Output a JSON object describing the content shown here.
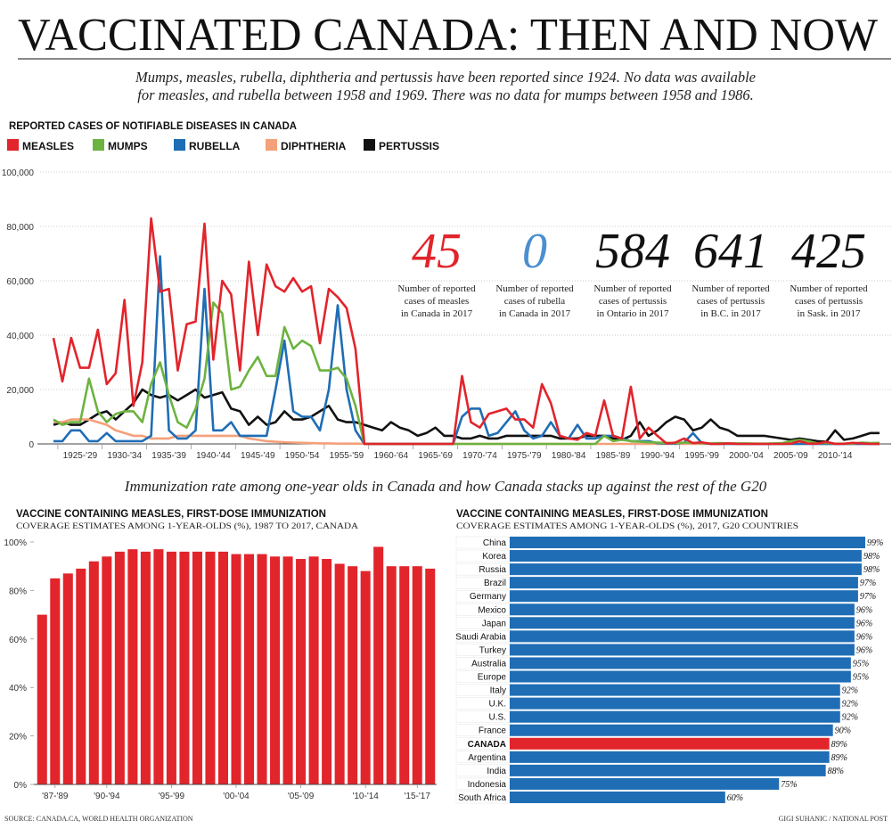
{
  "header": {
    "title": "VACCINATED CANADA: THEN AND NOW",
    "subtitle_lines": [
      "Mumps, measles, rubella, diphtheria and pertussis have been reported since 1924. No data was available",
      "for measles, and rubella between 1958 and 1969. There was no data for mumps between 1958 and 1986."
    ]
  },
  "section_heading": "Immunization rate among one-year olds in Canada and how Canada stacks up against the rest of the G20",
  "chart_data": [
    {
      "type": "line",
      "title": "REPORTED CASES OF NOTIFIABLE DISEASES IN CANADA",
      "x": [
        1924,
        1925,
        1926,
        1927,
        1928,
        1929,
        1930,
        1931,
        1932,
        1933,
        1934,
        1935,
        1936,
        1937,
        1938,
        1939,
        1940,
        1941,
        1942,
        1943,
        1944,
        1945,
        1946,
        1947,
        1948,
        1949,
        1950,
        1951,
        1952,
        1953,
        1954,
        1955,
        1956,
        1957,
        1958,
        1959,
        1960,
        1961,
        1962,
        1963,
        1964,
        1965,
        1966,
        1967,
        1968,
        1969,
        1970,
        1971,
        1972,
        1973,
        1974,
        1975,
        1976,
        1977,
        1978,
        1979,
        1980,
        1981,
        1982,
        1983,
        1984,
        1985,
        1986,
        1987,
        1988,
        1989,
        1990,
        1991,
        1992,
        1993,
        1994,
        1995,
        1996,
        1997,
        1998,
        1999,
        2000,
        2001,
        2002,
        2003,
        2004,
        2005,
        2006,
        2007,
        2008,
        2009,
        2010,
        2011,
        2012,
        2013,
        2014,
        2015,
        2016,
        2017
      ],
      "xlim": [
        1924,
        2017
      ],
      "xticks": [
        {
          "value": 1927,
          "label": "1925-'29"
        },
        {
          "value": 1932,
          "label": "1930-'34"
        },
        {
          "value": 1937,
          "label": "1935-'39"
        },
        {
          "value": 1942,
          "label": "1940-'44"
        },
        {
          "value": 1947,
          "label": "1945-'49"
        },
        {
          "value": 1952,
          "label": "1950-'54"
        },
        {
          "value": 1957,
          "label": "1955-'59"
        },
        {
          "value": 1962,
          "label": "1960-'64"
        },
        {
          "value": 1967,
          "label": "1965-'69"
        },
        {
          "value": 1972,
          "label": "1970-'74"
        },
        {
          "value": 1977,
          "label": "1975-'79"
        },
        {
          "value": 1982,
          "label": "1980-'84"
        },
        {
          "value": 1987,
          "label": "1985-'89"
        },
        {
          "value": 1992,
          "label": "1990-'94"
        },
        {
          "value": 1997,
          "label": "1995-'99"
        },
        {
          "value": 2002,
          "label": "2000-'04"
        },
        {
          "value": 2007,
          "label": "2005-'09"
        },
        {
          "value": 2012,
          "label": "2010-'14"
        }
      ],
      "ylim": [
        0,
        100000
      ],
      "yticks": [
        0,
        {
          "value": 20000,
          "label": "20,000"
        },
        {
          "value": 40000,
          "label": "40,000"
        },
        {
          "value": 60000,
          "label": "60,000"
        },
        {
          "value": 80000,
          "label": "80,000"
        },
        {
          "value": 100000,
          "label": "100,000"
        }
      ],
      "grid": true,
      "series": [
        {
          "name": "MEASLES",
          "color": "#e2242b",
          "values": [
            39000,
            23000,
            39000,
            28000,
            28000,
            42000,
            22000,
            26000,
            53000,
            14000,
            30000,
            83000,
            56000,
            57000,
            27000,
            44000,
            45000,
            81000,
            31000,
            60000,
            55000,
            27000,
            67000,
            40000,
            66000,
            58000,
            56000,
            61000,
            56000,
            58000,
            37000,
            57000,
            54000,
            50000,
            35000,
            0,
            0,
            0,
            0,
            0,
            0,
            0,
            0,
            0,
            0,
            0,
            25000,
            8000,
            6000,
            11000,
            12000,
            13000,
            9000,
            9000,
            6000,
            22000,
            15000,
            3000,
            2000,
            1500,
            4000,
            3000,
            16000,
            3000,
            2000,
            21000,
            2000,
            6000,
            3000,
            200,
            500,
            2000,
            300,
            600,
            12,
            30,
            200,
            40,
            10,
            20,
            10,
            10,
            10,
            100,
            1000,
            100,
            100,
            750,
            10,
            80,
            400,
            200,
            10,
            45
          ]
        },
        {
          "name": "MUMPS",
          "color": "#6db33f",
          "values": [
            9000,
            7000,
            8000,
            8000,
            24000,
            12000,
            8000,
            11000,
            12000,
            12000,
            8000,
            22000,
            30000,
            18000,
            8000,
            6000,
            13000,
            24000,
            52000,
            48000,
            20000,
            21000,
            27000,
            32000,
            25000,
            25000,
            43000,
            35000,
            38000,
            36000,
            27000,
            27000,
            28000,
            24000,
            14000,
            0,
            0,
            0,
            0,
            0,
            0,
            0,
            0,
            0,
            0,
            0,
            0,
            0,
            0,
            0,
            0,
            0,
            0,
            0,
            0,
            0,
            0,
            0,
            0,
            0,
            0,
            0,
            3000,
            1000,
            1500,
            1000,
            800,
            600,
            500,
            400,
            300,
            500,
            400,
            300,
            200,
            300,
            200,
            200,
            200,
            100,
            100,
            200,
            300,
            1000,
            1500,
            1000,
            200,
            400,
            100,
            100,
            100,
            500,
            300,
            400
          ]
        },
        {
          "name": "RUBELLA",
          "color": "#1f6db5",
          "values": [
            1000,
            1000,
            5000,
            5000,
            1000,
            1000,
            4000,
            1000,
            1000,
            1000,
            1000,
            3000,
            69000,
            5000,
            2000,
            2000,
            5000,
            57000,
            5000,
            5000,
            8000,
            3000,
            3000,
            3000,
            3000,
            20000,
            38000,
            12000,
            10000,
            10000,
            5000,
            20000,
            51000,
            20000,
            5000,
            0,
            0,
            0,
            0,
            0,
            0,
            0,
            0,
            0,
            0,
            0,
            10000,
            13000,
            13000,
            3000,
            4000,
            8000,
            12000,
            5000,
            2000,
            3000,
            8000,
            3000,
            2000,
            7000,
            2000,
            2000,
            3000,
            3000,
            2000,
            1000,
            1000,
            1000,
            300,
            200,
            100,
            500,
            4000,
            300,
            20,
            30,
            30,
            20,
            10,
            10,
            10,
            20,
            10,
            10,
            10,
            10,
            10,
            10,
            10,
            10,
            10,
            10,
            10,
            0
          ]
        },
        {
          "name": "DIPHTHERIA",
          "color": "#f4a07a",
          "values": [
            8000,
            8000,
            9000,
            9000,
            9000,
            8000,
            7000,
            5000,
            4000,
            3000,
            3000,
            2000,
            2000,
            2000,
            3000,
            3000,
            3000,
            3000,
            3000,
            3000,
            3000,
            3000,
            2000,
            1500,
            1000,
            800,
            600,
            500,
            400,
            300,
            200,
            200,
            100,
            100,
            100,
            50,
            50,
            40,
            30,
            20,
            20,
            20,
            20,
            10,
            10,
            10,
            10,
            10,
            10,
            10,
            10,
            10,
            10,
            10,
            10,
            10,
            10,
            5,
            5,
            5,
            0,
            0,
            0,
            0,
            0,
            0,
            0,
            0,
            0,
            0,
            0,
            0,
            0,
            0,
            0,
            0,
            0,
            0,
            0,
            0,
            0,
            0,
            0,
            0,
            0,
            0,
            0,
            0,
            0,
            0,
            0,
            0,
            0,
            0
          ]
        },
        {
          "name": "PERTUSSIS",
          "color": "#111111",
          "values": [
            7000,
            8000,
            7000,
            7000,
            9000,
            11000,
            12000,
            9000,
            12000,
            15000,
            20000,
            18000,
            17000,
            18000,
            16000,
            18000,
            20000,
            17000,
            18000,
            19000,
            13000,
            12000,
            7000,
            10000,
            7000,
            8000,
            12000,
            9000,
            9000,
            10000,
            12000,
            14000,
            9000,
            8000,
            8000,
            7000,
            6000,
            5000,
            8000,
            6000,
            5000,
            3000,
            4000,
            6000,
            3000,
            3000,
            2000,
            2000,
            3000,
            2000,
            2000,
            3000,
            3000,
            3000,
            3000,
            3000,
            3000,
            2000,
            2000,
            2000,
            3000,
            3000,
            3000,
            2000,
            1500,
            3000,
            8000,
            3000,
            5000,
            8000,
            10000,
            9000,
            5000,
            6000,
            9000,
            6000,
            5000,
            3000,
            3000,
            3000,
            3000,
            2500,
            2000,
            1500,
            2000,
            1500,
            1000,
            800,
            5000,
            1500,
            2000,
            3000,
            4000,
            4000
          ]
        }
      ],
      "annotations": [
        {
          "text": "45",
          "color": "#e2242b",
          "caption": [
            "Number of reported",
            "cases of measles",
            "in Canada in 2017"
          ]
        },
        {
          "text": "0",
          "color": "#4a8fd0",
          "caption": [
            "Number of reported",
            "cases of rubella",
            "in Canada in 2017"
          ]
        },
        {
          "text": "584",
          "color": "#111111",
          "caption": [
            "Number of reported",
            "cases of pertussis",
            "in Ontario in 2017"
          ]
        },
        {
          "text": "641",
          "color": "#111111",
          "caption": [
            "Number of reported",
            "cases of pertussis",
            "in B.C. in 2017"
          ]
        },
        {
          "text": "425",
          "color": "#111111",
          "caption": [
            "Number of reported",
            "cases of pertussis",
            "in Sask. in 2017"
          ]
        }
      ]
    },
    {
      "type": "bar",
      "title": "VACCINE CONTAINING MEASLES, FIRST-DOSE IMMUNIZATION",
      "subtitle": "COVERAGE ESTIMATES AMONG 1-YEAR-OLDS (%), 1987 TO 2017, CANADA",
      "x": [
        1987,
        1988,
        1989,
        1990,
        1991,
        1992,
        1993,
        1994,
        1995,
        1996,
        1997,
        1998,
        1999,
        2000,
        2001,
        2002,
        2003,
        2004,
        2005,
        2006,
        2007,
        2008,
        2009,
        2010,
        2011,
        2012,
        2013,
        2014,
        2015,
        2016,
        2017
      ],
      "values": [
        70,
        85,
        87,
        89,
        92,
        94,
        96,
        97,
        96,
        97,
        96,
        96,
        96,
        96,
        96,
        95,
        95,
        95,
        94,
        94,
        93,
        94,
        93,
        91,
        90,
        88,
        98,
        90,
        90,
        90,
        89
      ],
      "color": "#e2242b",
      "xlim": [
        1986.5,
        2017.5
      ],
      "xticks": [
        {
          "value": 1988,
          "label": "'87-'89"
        },
        {
          "value": 1992,
          "label": "'90-'94"
        },
        {
          "value": 1997,
          "label": "'95-'99"
        },
        {
          "value": 2002,
          "label": "'00-'04"
        },
        {
          "value": 2007,
          "label": "'05-'09"
        },
        {
          "value": 2012,
          "label": "'10-'14"
        },
        {
          "value": 2016,
          "label": "'15-'17"
        }
      ],
      "ylim": [
        0,
        100
      ],
      "yticks": [
        {
          "value": 0,
          "label": "0%"
        },
        {
          "value": 20,
          "label": "20%"
        },
        {
          "value": 40,
          "label": "40%"
        },
        {
          "value": 60,
          "label": "60%"
        },
        {
          "value": 80,
          "label": "80%"
        },
        {
          "value": 100,
          "label": "100%"
        }
      ]
    },
    {
      "type": "hbar",
      "title": "VACCINE CONTAINING MEASLES, FIRST-DOSE IMMUNIZATION",
      "subtitle": "COVERAGE ESTIMATES AMONG 1-YEAR-OLDS (%), 2017, G20 COUNTRIES",
      "categories": [
        "China",
        "Korea",
        "Russia",
        "Brazil",
        "Germany",
        "Mexico",
        "Japan",
        "Saudi Arabia",
        "Turkey",
        "Australia",
        "Europe",
        "Italy",
        "U.K.",
        "U.S.",
        "France",
        "CANADA",
        "Argentina",
        "India",
        "Indonesia",
        "South Africa"
      ],
      "values": [
        99,
        98,
        98,
        97,
        97,
        96,
        96,
        96,
        96,
        95,
        95,
        92,
        92,
        92,
        90,
        89,
        89,
        88,
        75,
        60
      ],
      "value_labels": [
        "99%",
        "98%",
        "98%",
        "97%",
        "97%",
        "96%",
        "96%",
        "96%",
        "96%",
        "95%",
        "95%",
        "92%",
        "92%",
        "92%",
        "90%",
        "89%",
        "89%",
        "88%",
        "75%",
        "60%"
      ],
      "colors": [
        "#1f6db5",
        "#1f6db5",
        "#1f6db5",
        "#1f6db5",
        "#1f6db5",
        "#1f6db5",
        "#1f6db5",
        "#1f6db5",
        "#1f6db5",
        "#1f6db5",
        "#1f6db5",
        "#1f6db5",
        "#1f6db5",
        "#1f6db5",
        "#1f6db5",
        "#e2242b",
        "#1f6db5",
        "#1f6db5",
        "#1f6db5",
        "#1f6db5"
      ],
      "xlim": [
        0,
        100
      ]
    }
  ],
  "footer": {
    "source": "SOURCE: CANADA.CA, WORLD HEALTH ORGANIZATION",
    "credit": "GIGI SUHANIC / NATIONAL POST"
  }
}
